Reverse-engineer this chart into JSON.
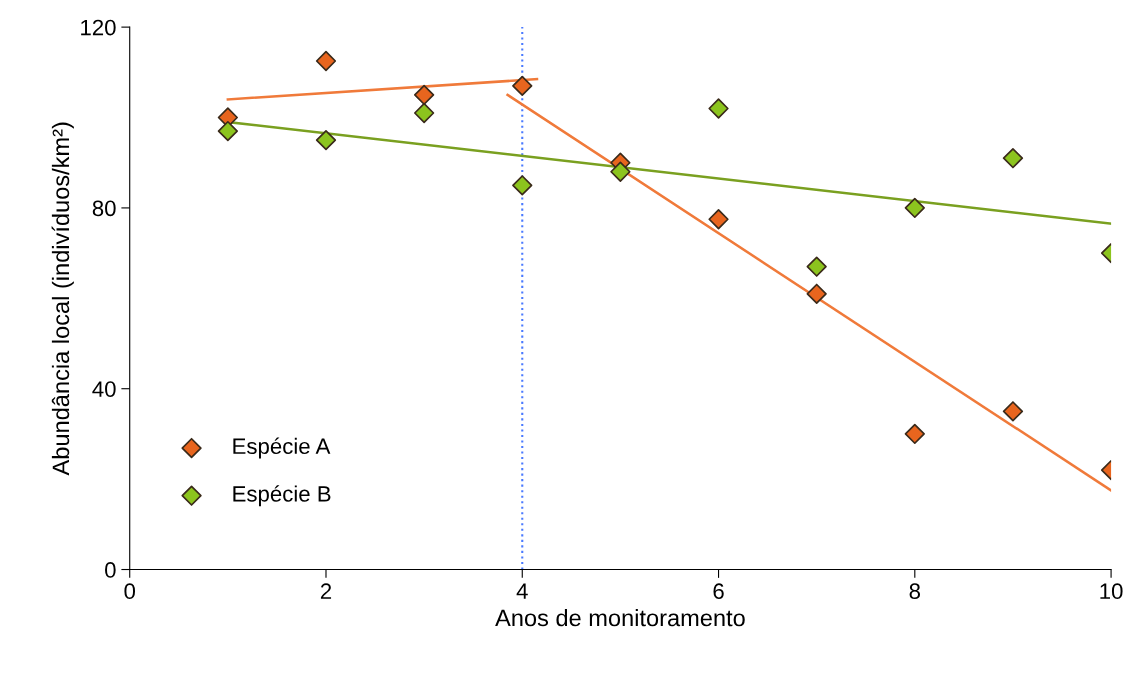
{
  "chart_data": {
    "type": "scatter",
    "xlabel": "Anos de monitoramento",
    "ylabel": "Abundância local (indivíduos/km²)",
    "xlim": [
      0,
      10
    ],
    "xticks": [
      0,
      2,
      4,
      6,
      8,
      10
    ],
    "ylim": [
      0,
      120
    ],
    "yticks": [
      0,
      40,
      80,
      120
    ],
    "grid": false,
    "legend": "lower left",
    "marker": "diamond",
    "series": [
      {
        "name": "Espécie A",
        "color": "#e8651e",
        "x": [
          1,
          2,
          3,
          4,
          5,
          6,
          7,
          8,
          9,
          10
        ],
        "values": [
          100,
          112.5,
          105,
          107,
          90,
          77.5,
          61,
          30,
          35,
          22
        ]
      },
      {
        "name": "Espécie B",
        "color": "#8cc41e",
        "x": [
          1,
          2,
          3,
          4,
          5,
          6,
          7,
          8,
          9,
          10
        ],
        "values": [
          97,
          95,
          101,
          85,
          88,
          102,
          67,
          80,
          91,
          70
        ]
      },
      {
        "type": "line",
        "marker": "none",
        "color": "#f07a3a",
        "x": [
          1,
          4.15
        ],
        "values": [
          104,
          108.5
        ]
      },
      {
        "type": "line",
        "marker": "none",
        "color": "#f07a3a",
        "x": [
          3.85,
          10
        ],
        "values": [
          105,
          17.5
        ]
      },
      {
        "type": "line",
        "marker": "none",
        "color": "#7aa020",
        "x": [
          1,
          10
        ],
        "values": [
          99,
          76.5
        ]
      }
    ],
    "ref_lines": [
      {
        "axis": "x",
        "value": 4,
        "color": "#4a7aff",
        "line_style": "dotted"
      }
    ]
  }
}
